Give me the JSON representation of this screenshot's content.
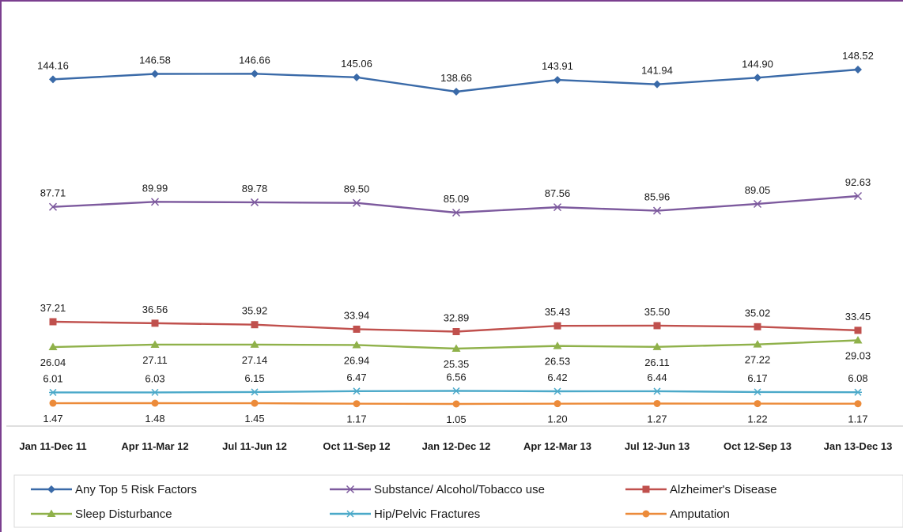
{
  "chart_data": {
    "type": "line",
    "categories": [
      "Jan 11-Dec 11",
      "Apr 11-Mar 12",
      "Jul 11-Jun 12",
      "Oct 11-Sep 12",
      "Jan 12-Dec 12",
      "Apr 12-Mar 13",
      "Jul 12-Jun 13",
      "Oct 12-Sep 13",
      "Jan 13-Dec 13"
    ],
    "legend_position": "bottom",
    "grid": false,
    "series": [
      {
        "name": "Any Top 5 Risk Factors",
        "color": "#3a6aa8",
        "marker": "diamond",
        "label_pos": "above",
        "values": [
          144.16,
          146.58,
          146.66,
          145.06,
          138.66,
          143.91,
          141.94,
          144.9,
          148.52
        ],
        "labels": [
          "144.16",
          "146.58",
          "146.66",
          "145.06",
          "138.66",
          "143.91",
          "141.94",
          "144.90",
          "148.52"
        ]
      },
      {
        "name": "Substance/ Alcohol/Tobacco use",
        "color": "#7d5a9e",
        "marker": "x",
        "label_pos": "above",
        "values": [
          87.71,
          89.99,
          89.78,
          89.5,
          85.09,
          87.56,
          85.96,
          89.05,
          92.63
        ],
        "labels": [
          "87.71",
          "89.99",
          "89.78",
          "89.50",
          "85.09",
          "87.56",
          "85.96",
          "89.05",
          "92.63"
        ]
      },
      {
        "name": "Alzheimer's Disease",
        "color": "#c0504d",
        "marker": "square",
        "label_pos": "above",
        "values": [
          37.21,
          36.56,
          35.92,
          33.94,
          32.89,
          35.43,
          35.5,
          35.02,
          33.45
        ],
        "labels": [
          "37.21",
          "36.56",
          "35.92",
          "33.94",
          "32.89",
          "35.43",
          "35.50",
          "35.02",
          "33.45"
        ]
      },
      {
        "name": "Sleep Disturbance",
        "color": "#8fb14a",
        "marker": "triangle",
        "label_pos": "below",
        "values": [
          26.04,
          27.11,
          27.14,
          26.94,
          25.35,
          26.53,
          26.11,
          27.22,
          29.03
        ],
        "labels": [
          "26.04",
          "27.11",
          "27.14",
          "26.94",
          "25.35",
          "26.53",
          "26.11",
          "27.22",
          "29.03"
        ]
      },
      {
        "name": "Hip/Pelvic Fractures",
        "color": "#4ba9c9",
        "marker": "star",
        "label_pos": "above",
        "values": [
          6.01,
          6.03,
          6.15,
          6.47,
          6.56,
          6.42,
          6.44,
          6.17,
          6.08
        ],
        "labels": [
          "6.01",
          "6.03",
          "6.15",
          "6.47",
          "6.56",
          "6.42",
          "6.44",
          "6.17",
          "6.08"
        ]
      },
      {
        "name": "Amputation",
        "color": "#ec8b3a",
        "marker": "circle",
        "label_pos": "below",
        "values": [
          1.47,
          1.48,
          1.45,
          1.17,
          1.05,
          1.2,
          1.27,
          1.22,
          1.17
        ],
        "labels": [
          "1.47",
          "1.48",
          "1.45",
          "1.17",
          "1.05",
          "1.20",
          "1.27",
          "1.22",
          "1.17"
        ]
      }
    ]
  }
}
